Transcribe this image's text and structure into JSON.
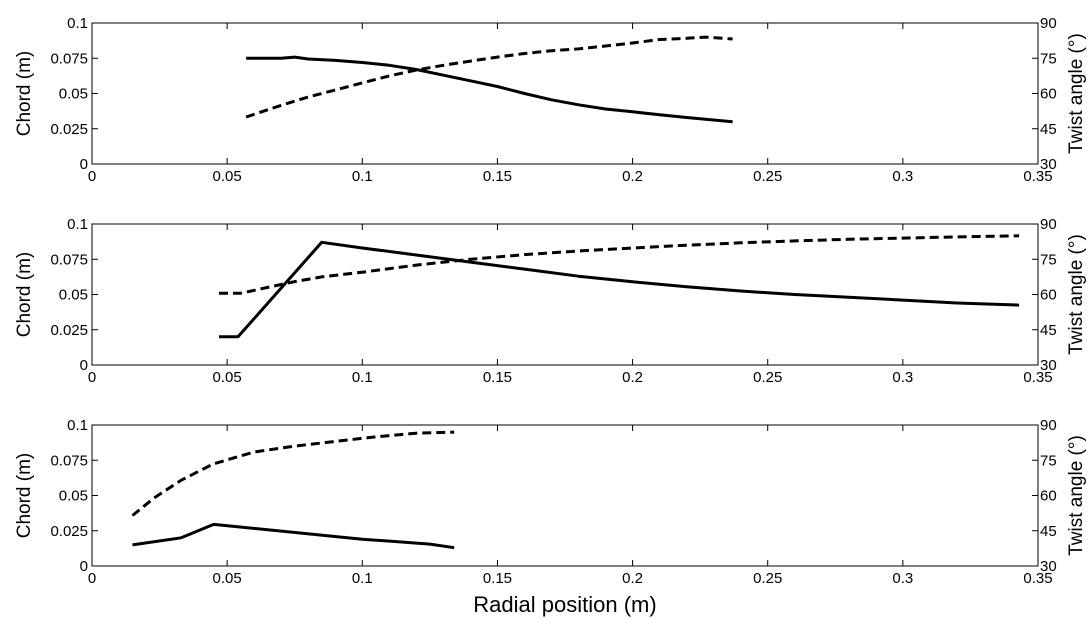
{
  "chart_data": [
    {
      "type": "line",
      "xlim": [
        0,
        0.35
      ],
      "x_ticks": [
        "0",
        "0.05",
        "0.1",
        "0.15",
        "0.2",
        "0.25",
        "0.3",
        "0.35"
      ],
      "ylabel_left": "Chord (m)",
      "ylim_left": [
        0,
        0.1
      ],
      "y_ticks_left": [
        "0",
        "0.025",
        "0.05",
        "0.075",
        "0.1"
      ],
      "ylabel_right": "Twist angle (°)",
      "ylim_right": [
        30,
        90
      ],
      "y_ticks_right": [
        "30",
        "45",
        "60",
        "75",
        "90"
      ],
      "grid": false,
      "series": [
        {
          "axis": "left",
          "style": "solid",
          "x": [
            0.057,
            0.07,
            0.075,
            0.08,
            0.09,
            0.1,
            0.11,
            0.12,
            0.13,
            0.14,
            0.15,
            0.16,
            0.17,
            0.18,
            0.19,
            0.2,
            0.21,
            0.22,
            0.237
          ],
          "y": [
            0.075,
            0.075,
            0.0758,
            0.0745,
            0.0735,
            0.072,
            0.07,
            0.067,
            0.063,
            0.059,
            0.055,
            0.05,
            0.0455,
            0.042,
            0.039,
            0.037,
            0.035,
            0.033,
            0.03
          ]
        },
        {
          "axis": "right",
          "style": "dashed",
          "x": [
            0.057,
            0.07,
            0.08,
            0.09,
            0.1,
            0.11,
            0.12,
            0.13,
            0.14,
            0.15,
            0.16,
            0.17,
            0.18,
            0.19,
            0.2,
            0.21,
            0.22,
            0.227,
            0.237
          ],
          "y": [
            50,
            55,
            58.5,
            61.5,
            64.5,
            67.5,
            70,
            72,
            73.8,
            75.5,
            77,
            78.2,
            79,
            80.2,
            81.5,
            83,
            83.5,
            84,
            83.2
          ]
        }
      ]
    },
    {
      "type": "line",
      "xlim": [
        0,
        0.35
      ],
      "x_ticks": [
        "0",
        "0.05",
        "0.1",
        "0.15",
        "0.2",
        "0.25",
        "0.3",
        "0.35"
      ],
      "ylabel_left": "Chord (m)",
      "ylim_left": [
        0,
        0.1
      ],
      "y_ticks_left": [
        "0",
        "0.025",
        "0.05",
        "0.075",
        "0.1"
      ],
      "ylabel_right": "Twist angle (°)",
      "ylim_right": [
        30,
        90
      ],
      "y_ticks_right": [
        "30",
        "45",
        "60",
        "75",
        "90"
      ],
      "grid": false,
      "series": [
        {
          "axis": "left",
          "style": "solid",
          "x": [
            0.047,
            0.054,
            0.085,
            0.1,
            0.12,
            0.14,
            0.16,
            0.18,
            0.2,
            0.22,
            0.24,
            0.26,
            0.28,
            0.3,
            0.32,
            0.343
          ],
          "y": [
            0.02,
            0.02,
            0.087,
            0.083,
            0.078,
            0.073,
            0.068,
            0.063,
            0.059,
            0.0555,
            0.0525,
            0.05,
            0.048,
            0.046,
            0.044,
            0.0425
          ]
        },
        {
          "axis": "right",
          "style": "dashed",
          "x": [
            0.047,
            0.055,
            0.065,
            0.075,
            0.085,
            0.1,
            0.12,
            0.14,
            0.16,
            0.18,
            0.2,
            0.22,
            0.24,
            0.26,
            0.28,
            0.3,
            0.32,
            0.343
          ],
          "y": [
            60.5,
            60.5,
            63,
            65.5,
            67.5,
            69.5,
            72.5,
            75,
            77,
            78.5,
            79.8,
            81,
            82,
            82.8,
            83.5,
            84,
            84.5,
            85
          ]
        }
      ]
    },
    {
      "type": "line",
      "xlim": [
        0,
        0.35
      ],
      "x_ticks": [
        "0",
        "0.05",
        "0.1",
        "0.15",
        "0.2",
        "0.25",
        "0.3",
        "0.35"
      ],
      "xlabel": "Radial position (m)",
      "ylabel_left": "Chord (m)",
      "ylim_left": [
        0,
        0.1
      ],
      "y_ticks_left": [
        "0",
        "0.025",
        "0.05",
        "0.075",
        "0.1"
      ],
      "ylabel_right": "Twist angle (°)",
      "ylim_right": [
        30,
        90
      ],
      "y_ticks_right": [
        "30",
        "45",
        "60",
        "75",
        "90"
      ],
      "grid": false,
      "series": [
        {
          "axis": "left",
          "style": "solid",
          "x": [
            0.015,
            0.033,
            0.045,
            0.1,
            0.125,
            0.134
          ],
          "y": [
            0.015,
            0.02,
            0.0295,
            0.019,
            0.0155,
            0.013
          ]
        },
        {
          "axis": "right",
          "style": "dashed",
          "x": [
            0.015,
            0.023,
            0.033,
            0.045,
            0.06,
            0.075,
            0.09,
            0.105,
            0.12,
            0.134
          ],
          "y": [
            51.5,
            59,
            66.5,
            73.5,
            78.5,
            81,
            83,
            85,
            86.5,
            87
          ]
        }
      ]
    }
  ]
}
